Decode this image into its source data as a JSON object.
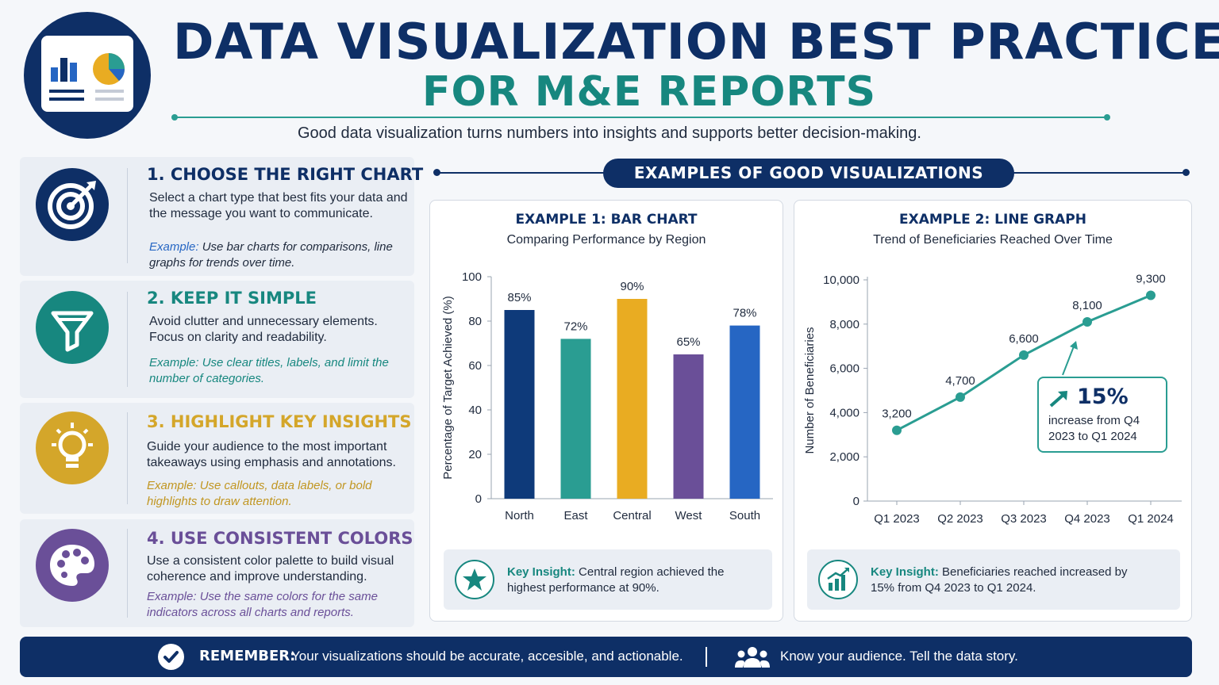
{
  "header": {
    "title": "DATA VISUALIZATION BEST PRACTICES",
    "subtitle": "FOR M&E REPORTS",
    "tagline": "Good data visualization turns numbers into insights and supports better decision-making.",
    "logo_icon": "dashboard-report-icon"
  },
  "colors": {
    "navy": "#0e2f66",
    "teal": "#17877f",
    "gold": "#d4a62a",
    "purple": "#6a4f98",
    "blue": "#2666c3"
  },
  "practices": [
    {
      "title": "1. CHOOSE THE RIGHT CHART",
      "body": "Select a chart type that best fits your data and the message you want to communicate.",
      "example_label": "Example:",
      "example": "Use bar charts for comparisons, line graphs for trends over time.",
      "icon": "target-icon",
      "color": "#0e2f66"
    },
    {
      "title": "2. KEEP IT SIMPLE",
      "body": "Avoid clutter and unnecessary elements. Focus on clarity and readability.",
      "example_label": "Example:",
      "example": "Use clear titles, labels, and limit the number of categories.",
      "icon": "funnel-icon",
      "color": "#17877f"
    },
    {
      "title": "3. HIGHLIGHT KEY INSIGHTS",
      "body": "Guide your audience to the most important takeaways using emphasis and annotations.",
      "example_label": "Example:",
      "example": "Use callouts, data labels, or bold highlights to draw attention.",
      "icon": "lightbulb-icon",
      "color": "#d4a62a"
    },
    {
      "title": "4. USE CONSISTENT COLORS",
      "body": "Use a consistent color palette to build visual coherence and improve understanding.",
      "example_label": "Example:",
      "example": "Use the same colors for the same indicators across all charts and reports.",
      "icon": "palette-icon",
      "color": "#6a4f98"
    }
  ],
  "examples_header": "EXAMPLES OF GOOD VISUALIZATIONS",
  "chart_data": [
    {
      "type": "bar",
      "title": "EXAMPLE 1: BAR CHART",
      "subtitle": "Comparing Performance by Region",
      "ylabel": "Percentage of Target Achieved (%)",
      "xlabel": "",
      "ylim": [
        0,
        100
      ],
      "yticks": [
        "0",
        "20",
        "40",
        "60",
        "80",
        "100"
      ],
      "categories": [
        "North",
        "East",
        "Central",
        "West",
        "South"
      ],
      "values": [
        85,
        72,
        90,
        65,
        78
      ],
      "data_labels": [
        "85%",
        "72%",
        "90%",
        "65%",
        "78%"
      ],
      "bar_colors": [
        "#0e3a7a",
        "#2a9d92",
        "#e9ac22",
        "#6a4f98",
        "#2666c3"
      ],
      "grid": false,
      "insight_label": "Key Insight:",
      "insight_text": "Central region achieved the highest performance at 90%."
    },
    {
      "type": "line",
      "title": "EXAMPLE 2: LINE GRAPH",
      "subtitle": "Trend of Beneficiaries Reached Over Time",
      "ylabel": "Number of Beneficiaries",
      "xlabel": "",
      "ylim": [
        0,
        10000
      ],
      "yticks": [
        "0",
        "2,000",
        "4,000",
        "6,000",
        "8,000",
        "10,000"
      ],
      "categories": [
        "Q1 2023",
        "Q2 2023",
        "Q3 2023",
        "Q4 2023",
        "Q1 2024"
      ],
      "values": [
        3200,
        4700,
        6600,
        8100,
        9300
      ],
      "data_labels": [
        "3,200",
        "4,700",
        "6,600",
        "8,100",
        "9,300"
      ],
      "line_color": "#2a9d92",
      "grid": false,
      "callout_value": "15%",
      "callout_text": "increase from Q4 2023 to Q1 2024",
      "insight_label": "Key Insight:",
      "insight_text": "Beneficiaries reached increased by 15% from Q4 2023 to Q1 2024."
    }
  ],
  "footer": {
    "label": "REMEMBER:",
    "text": "Your visualizations should be accurate, accesible, and actionable.",
    "text2": "Know your audience. Tell the data story.",
    "icon_left": "checkmark-icon",
    "icon_right": "people-icon"
  }
}
